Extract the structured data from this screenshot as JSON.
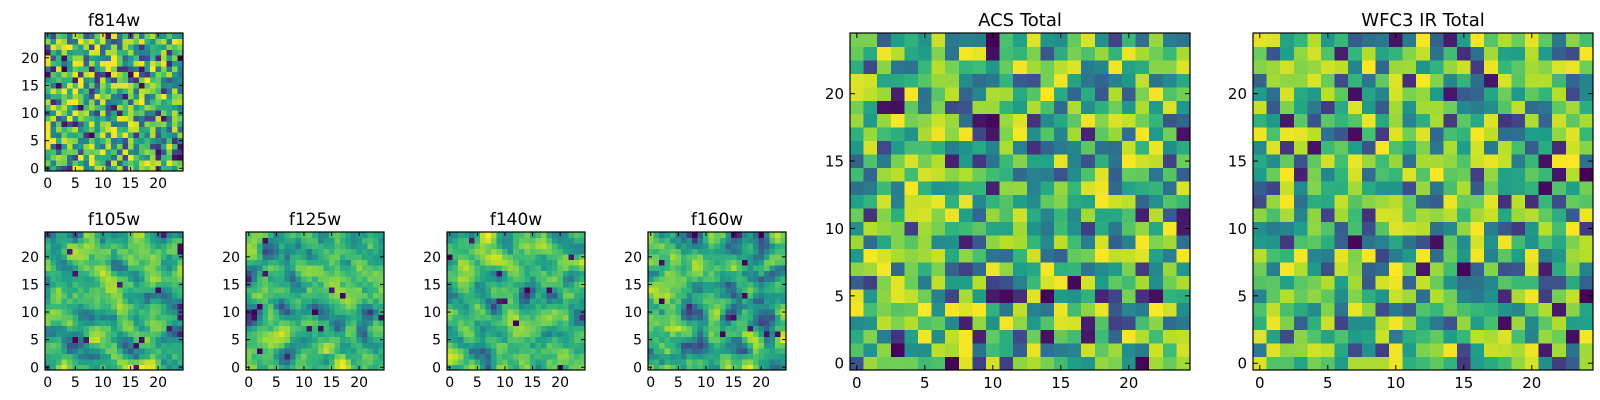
{
  "chart_data": {
    "type": "heatmap",
    "colormap": "viridis",
    "grid_size": 25,
    "value_range": [
      0,
      1
    ],
    "panels": [
      {
        "id": "f814w",
        "title": "f814w",
        "grid": 25,
        "seed": 814,
        "smooth": 0,
        "xticks": [
          "0",
          "5",
          "10",
          "15",
          "20"
        ],
        "yticks": [
          "0",
          "5",
          "10",
          "15",
          "20"
        ],
        "xtick_values": [
          0,
          5,
          10,
          15,
          20
        ],
        "ytick_values": [
          0,
          5,
          10,
          15,
          20
        ]
      },
      {
        "id": "f105w",
        "title": "f105w",
        "grid": 25,
        "seed": 105,
        "smooth": 1,
        "xticks": [
          "0",
          "5",
          "10",
          "15",
          "20"
        ],
        "yticks": [
          "0",
          "5",
          "10",
          "15",
          "20"
        ],
        "xtick_values": [
          0,
          5,
          10,
          15,
          20
        ],
        "ytick_values": [
          0,
          5,
          10,
          15,
          20
        ]
      },
      {
        "id": "f125w",
        "title": "f125w",
        "grid": 25,
        "seed": 125,
        "smooth": 1,
        "xticks": [
          "0",
          "5",
          "10",
          "15",
          "20"
        ],
        "yticks": [
          "0",
          "5",
          "10",
          "15",
          "20"
        ],
        "xtick_values": [
          0,
          5,
          10,
          15,
          20
        ],
        "ytick_values": [
          0,
          5,
          10,
          15,
          20
        ]
      },
      {
        "id": "f140w",
        "title": "f140w",
        "grid": 25,
        "seed": 140,
        "smooth": 1,
        "xticks": [
          "0",
          "5",
          "10",
          "15",
          "20"
        ],
        "yticks": [
          "0",
          "5",
          "10",
          "15",
          "20"
        ],
        "xtick_values": [
          0,
          5,
          10,
          15,
          20
        ],
        "ytick_values": [
          0,
          5,
          10,
          15,
          20
        ]
      },
      {
        "id": "f160w",
        "title": "f160w",
        "grid": 25,
        "seed": 160,
        "smooth": 1,
        "xticks": [
          "0",
          "5",
          "10",
          "15",
          "20"
        ],
        "yticks": [
          "0",
          "5",
          "10",
          "15",
          "20"
        ],
        "xtick_values": [
          0,
          5,
          10,
          15,
          20
        ],
        "ytick_values": [
          0,
          5,
          10,
          15,
          20
        ]
      },
      {
        "id": "acs-total",
        "title": "ACS Total",
        "grid": 25,
        "seed": 901,
        "smooth": 0,
        "xticks": [
          "0",
          "5",
          "10",
          "15",
          "20"
        ],
        "yticks": [
          "0",
          "5",
          "10",
          "15",
          "20"
        ],
        "xtick_values": [
          0,
          5,
          10,
          15,
          20
        ],
        "ytick_values": [
          0,
          5,
          10,
          15,
          20
        ]
      },
      {
        "id": "wfc3-ir-total",
        "title": "WFC3 IR Total",
        "grid": 25,
        "seed": 902,
        "smooth": 0,
        "xticks": [
          "0",
          "5",
          "10",
          "15",
          "20"
        ],
        "yticks": [
          "0",
          "5",
          "10",
          "15",
          "20"
        ],
        "xtick_values": [
          0,
          5,
          10,
          15,
          20
        ],
        "ytick_values": [
          0,
          5,
          10,
          15,
          20
        ]
      }
    ]
  }
}
